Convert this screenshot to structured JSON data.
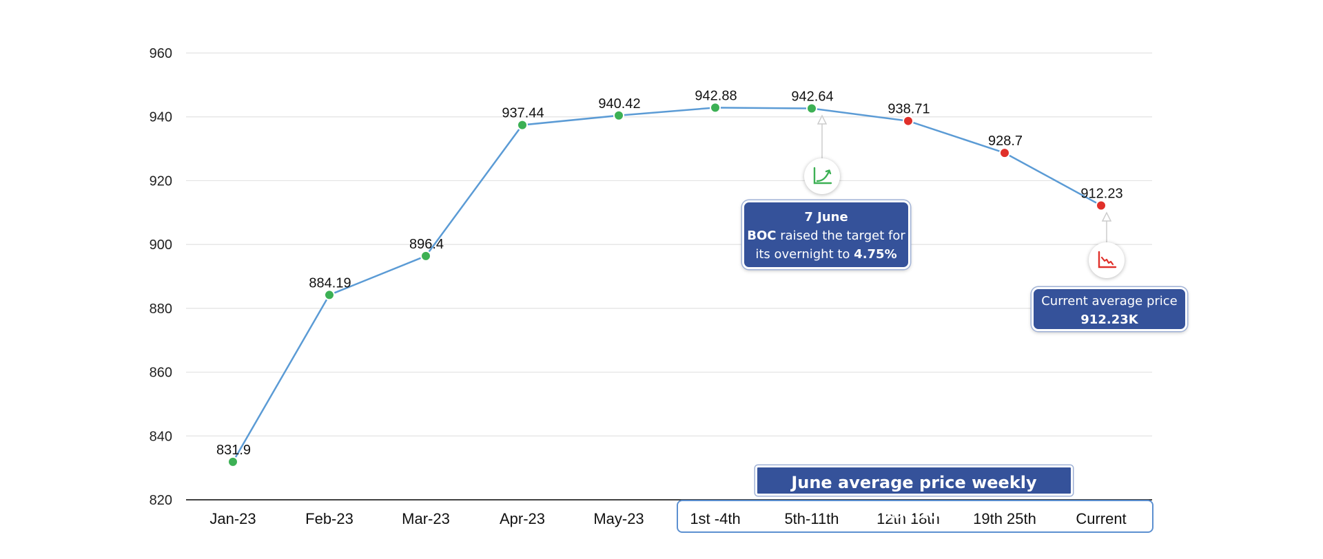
{
  "chart_data": {
    "type": "line",
    "categories": [
      "Jan-23",
      "Feb-23",
      "Mar-23",
      "Apr-23",
      "May-23",
      "1st -4th",
      "5th-11th",
      "12th 18th",
      "19th 25th",
      "Current"
    ],
    "values": [
      831.9,
      884.19,
      896.4,
      937.44,
      940.42,
      942.88,
      942.64,
      938.71,
      928.7,
      912.23
    ],
    "value_labels": [
      "831.9",
      "884.19",
      "896.4",
      "937.44",
      "940.42",
      "942.88",
      "942.64",
      "938.71",
      "928.7",
      "912.23"
    ],
    "point_status": [
      "up",
      "up",
      "up",
      "up",
      "up",
      "up",
      "up",
      "down",
      "down",
      "down"
    ],
    "ylim": [
      820,
      960
    ],
    "yticks": [
      "820",
      "840",
      "860",
      "880",
      "900",
      "920",
      "940",
      "960"
    ],
    "grid": true,
    "title": "",
    "xlabel": "",
    "ylabel": "",
    "colors": {
      "line": "#5b9bd5",
      "up": "#3cb054",
      "down": "#e0302a",
      "callout": "#35529a"
    }
  },
  "annotations": {
    "june": {
      "date": "7 June",
      "bold": "BOC",
      "text1": "raised the target for",
      "text2": "its overnight to",
      "rate": "4.75%",
      "icon": "trend-up-icon"
    },
    "current": {
      "line1": "Current average price",
      "line2": "912.23K",
      "icon": "trend-down-icon"
    }
  },
  "week_breakdown_title": "June average price weekly breakdown"
}
